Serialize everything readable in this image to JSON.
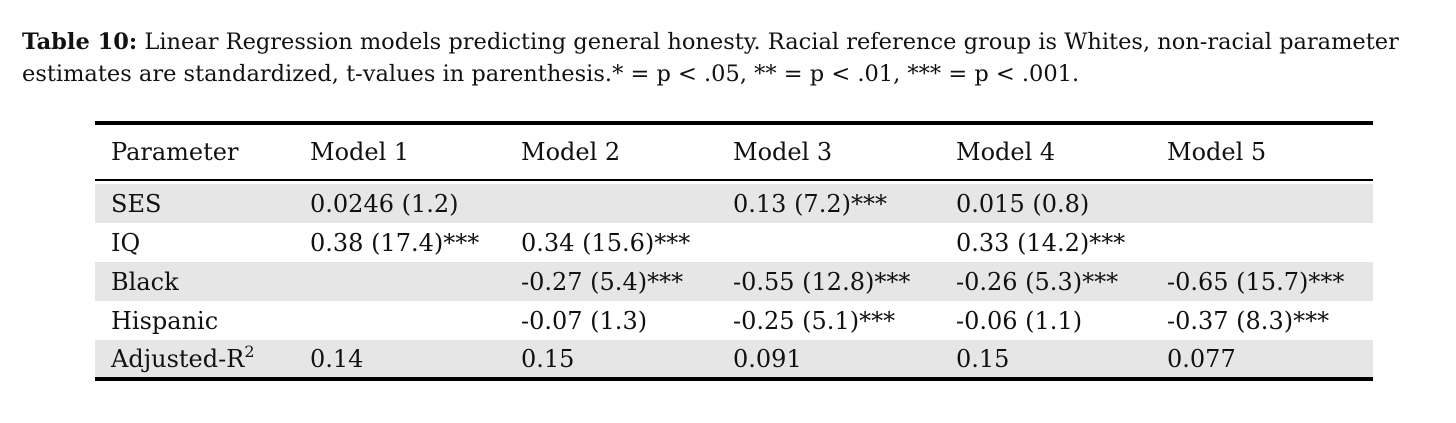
{
  "caption": {
    "label": "Table 10:",
    "line1_text": "Linear Regression models predicting general honesty. Racial reference group is Whites, non-racial parameter",
    "line2_text": "estimates are standardized, t-values in parenthesis.* = p < .05, ** = p < .01, *** = p < .001."
  },
  "table": {
    "headers": [
      "Parameter",
      "Model 1",
      "Model 2",
      "Model 3",
      "Model 4",
      "Model 5"
    ],
    "rows": [
      {
        "param": "SES",
        "cells": [
          "0.0246 (1.2)",
          "",
          "0.13 (7.2)***",
          "0.015 (0.8)",
          ""
        ]
      },
      {
        "param": "IQ",
        "cells": [
          "0.38 (17.4)***",
          "0.34 (15.6)***",
          "",
          "0.33 (14.2)***",
          ""
        ]
      },
      {
        "param": "Black",
        "cells": [
          "",
          "-0.27 (5.4)***",
          "-0.55 (12.8)***",
          "-0.26 (5.3)***",
          "-0.65 (15.7)***"
        ]
      },
      {
        "param": "Hispanic",
        "cells": [
          "",
          "-0.07 (1.3)",
          "-0.25 (5.1)***",
          "-0.06 (1.1)",
          "-0.37 (8.3)***"
        ]
      },
      {
        "param": "Adjusted-R",
        "param_sup": "2",
        "cells": [
          "0.14",
          "0.15",
          "0.091",
          "0.15",
          "0.077"
        ]
      }
    ]
  }
}
